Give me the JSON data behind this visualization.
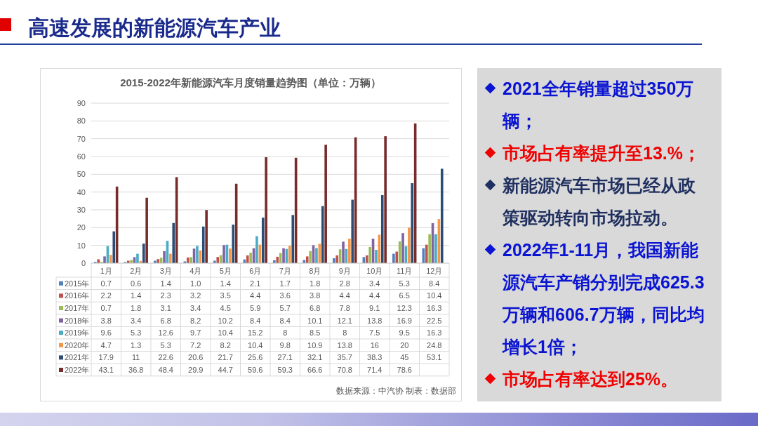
{
  "chart_data": [
    {
      "type": "bar",
      "title": "高速发展的新能源汽车产业",
      "subtitle": "2015-2022年新能源汽车月度销量趋势图（单位：万辆）",
      "categories": [
        "1月",
        "2月",
        "3月",
        "4月",
        "5月",
        "6月",
        "7月",
        "8月",
        "9月",
        "10月",
        "11月",
        "12月"
      ],
      "series": [
        {
          "name": "2015年",
          "color": "#4f81bd",
          "values": [
            0.7,
            0.6,
            1.4,
            1.0,
            1.4,
            2.1,
            1.7,
            1.8,
            2.8,
            3.4,
            5.3,
            8.4
          ],
          "value_labels": [
            "0.7",
            "0.6",
            "1.4",
            "1.0",
            "1.4",
            "2.1",
            "1.7",
            "1.8",
            "2.8",
            "3.4",
            "5.3",
            "8.4"
          ]
        },
        {
          "name": "2016年",
          "color": "#c0504d",
          "values": [
            2.2,
            1.4,
            2.3,
            3.2,
            3.5,
            4.4,
            3.6,
            3.8,
            4.4,
            4.4,
            6.5,
            10.4
          ],
          "value_labels": [
            "2.2",
            "1.4",
            "2.3",
            "3.2",
            "3.5",
            "4.4",
            "3.6",
            "3.8",
            "4.4",
            "4.4",
            "6.5",
            "10.4"
          ]
        },
        {
          "name": "2017年",
          "color": "#9bbb59",
          "values": [
            0.7,
            1.8,
            3.1,
            3.4,
            4.5,
            5.9,
            5.7,
            6.8,
            7.8,
            9.1,
            12.3,
            16.3
          ],
          "value_labels": [
            "0.7",
            "1.8",
            "3.1",
            "3.4",
            "4.5",
            "5.9",
            "5.7",
            "6.8",
            "7.8",
            "9.1",
            "12.3",
            "16.3"
          ]
        },
        {
          "name": "2018年",
          "color": "#8064a2",
          "values": [
            3.8,
            3.4,
            6.8,
            8.2,
            10.2,
            8.4,
            8.4,
            10.1,
            12.1,
            13.8,
            16.9,
            22.5
          ],
          "value_labels": [
            "3.8",
            "3.4",
            "6.8",
            "8.2",
            "10.2",
            "8.4",
            "8.4",
            "10.1",
            "12.1",
            "13.8",
            "16.9",
            "22.5"
          ]
        },
        {
          "name": "2019年",
          "color": "#4bacc6",
          "values": [
            9.6,
            5.3,
            12.6,
            9.7,
            10.4,
            15.2,
            8,
            8.5,
            8,
            7.5,
            9.5,
            16.3
          ],
          "value_labels": [
            "9.6",
            "5.3",
            "12.6",
            "9.7",
            "10.4",
            "15.2",
            "8",
            "8.5",
            "8",
            "7.5",
            "9.5",
            "16.3"
          ]
        },
        {
          "name": "2020年",
          "color": "#f79646",
          "values": [
            4.7,
            1.3,
            5.3,
            7.2,
            8.2,
            10.4,
            9.8,
            10.9,
            13.8,
            16,
            20,
            24.8
          ],
          "value_labels": [
            "4.7",
            "1.3",
            "5.3",
            "7.2",
            "8.2",
            "10.4",
            "9.8",
            "10.9",
            "13.8",
            "16",
            "20",
            "24.8"
          ]
        },
        {
          "name": "2021年",
          "color": "#2c4d75",
          "values": [
            17.9,
            11,
            22.6,
            20.6,
            21.7,
            25.6,
            27.1,
            32.1,
            35.7,
            38.3,
            45,
            53.1
          ],
          "value_labels": [
            "17.9",
            "11",
            "22.6",
            "20.6",
            "21.7",
            "25.6",
            "27.1",
            "32.1",
            "35.7",
            "38.3",
            "45",
            "53.1"
          ]
        },
        {
          "name": "2022年",
          "color": "#772c2a",
          "values": [
            43.1,
            36.8,
            48.4,
            29.9,
            44.7,
            59.6,
            59.3,
            66.6,
            70.8,
            71.4,
            78.6,
            null
          ],
          "value_labels": [
            "43.1",
            "36.8",
            "48.4",
            "29.9",
            "44.7",
            "59.6",
            "59.3",
            "66.6",
            "70.8",
            "71.4",
            "78.6",
            null
          ]
        }
      ],
      "ylim": [
        0,
        90
      ],
      "yticks": [
        0,
        10,
        20,
        30,
        40,
        50,
        60,
        70,
        80,
        90
      ],
      "grid": "y",
      "legend": "bottom",
      "annotations": [
        "数据来源：中汽协 制表：数据部"
      ]
    },
    {
      "type": "other",
      "annotations": [
        "2021全年销量超过350万辆；",
        "市场占有率提升至13.%；",
        "新能源汽车市场已经从政策驱动转向市场拉动。",
        "2022年1-11月，我国新能源汽车产销分别完成625.3万辆和606.7万辆，同比均增长1倍；",
        "市场占有率达到25%。"
      ]
    }
  ]
}
